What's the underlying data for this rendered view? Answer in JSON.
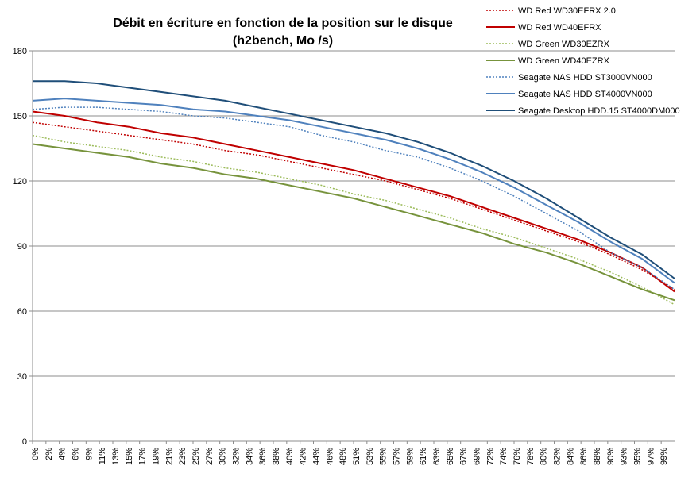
{
  "chart_data": {
    "type": "line",
    "title_lines": [
      "Débit en écriture en fonction de la position sur le disque",
      "(h2bench, Mo /s)"
    ],
    "xlabel": "",
    "ylabel": "",
    "ylim": [
      0,
      180
    ],
    "yticks": [
      0,
      30,
      60,
      90,
      120,
      150,
      180
    ],
    "grid": true,
    "legend_position": "top-right",
    "x_ticks": [
      "0%",
      "2%",
      "4%",
      "6%",
      "9%",
      "11%",
      "13%",
      "15%",
      "17%",
      "19%",
      "21%",
      "23%",
      "25%",
      "27%",
      "30%",
      "32%",
      "34%",
      "36%",
      "38%",
      "40%",
      "42%",
      "44%",
      "46%",
      "48%",
      "51%",
      "53%",
      "55%",
      "57%",
      "59%",
      "61%",
      "63%",
      "65%",
      "67%",
      "69%",
      "72%",
      "74%",
      "76%",
      "78%",
      "80%",
      "82%",
      "84%",
      "86%",
      "88%",
      "90%",
      "93%",
      "95%",
      "97%",
      "99%"
    ],
    "x": [
      0,
      5,
      10,
      15,
      20,
      25,
      30,
      35,
      40,
      45,
      50,
      55,
      60,
      65,
      70,
      75,
      80,
      85,
      90,
      95,
      100
    ],
    "series": [
      {
        "name": "WD Red WD30EFRX 2.0",
        "color": "#c00000",
        "dash": "dotted",
        "values": [
          147,
          145,
          143,
          141,
          139,
          137,
          134,
          132,
          129,
          126,
          123,
          120,
          116,
          112,
          107,
          102,
          97,
          92,
          86,
          79,
          70
        ]
      },
      {
        "name": "WD Red WD40EFRX",
        "color": "#c00000",
        "dash": "solid",
        "values": [
          152,
          150,
          147,
          145,
          142,
          140,
          137,
          134,
          131,
          128,
          125,
          121,
          117,
          113,
          108,
          103,
          98,
          93,
          87,
          80,
          69
        ]
      },
      {
        "name": "WD Green WD30EZRX",
        "color": "#9bbb59",
        "dash": "dotted",
        "values": [
          141,
          138,
          136,
          134,
          131,
          129,
          126,
          124,
          121,
          118,
          114,
          111,
          107,
          103,
          98,
          94,
          89,
          84,
          78,
          71,
          63
        ]
      },
      {
        "name": "WD Green WD40EZRX",
        "color": "#77933c",
        "dash": "solid",
        "values": [
          137,
          135,
          133,
          131,
          128,
          126,
          123,
          121,
          118,
          115,
          112,
          108,
          104,
          100,
          96,
          91,
          87,
          82,
          76,
          70,
          65
        ]
      },
      {
        "name": "Seagate NAS HDD ST3000VN000",
        "color": "#4f81bd",
        "dash": "dotted",
        "values": [
          153,
          154,
          154,
          153,
          152,
          150,
          149,
          147,
          145,
          141,
          138,
          134,
          131,
          126,
          120,
          113,
          105,
          97,
          87,
          80,
          70
        ]
      },
      {
        "name": "Seagate NAS HDD ST4000VN000",
        "color": "#4f81bd",
        "dash": "solid",
        "values": [
          157,
          158,
          157,
          156,
          155,
          153,
          152,
          150,
          148,
          145,
          142,
          139,
          135,
          130,
          124,
          117,
          109,
          101,
          92,
          84,
          73
        ]
      },
      {
        "name": "Seagate Desktop HDD.15 ST4000DM000",
        "color": "#1f4e79",
        "dash": "solid",
        "values": [
          166,
          166,
          165,
          163,
          161,
          159,
          157,
          154,
          151,
          148,
          145,
          142,
          138,
          133,
          127,
          120,
          112,
          103,
          94,
          86,
          75
        ]
      }
    ]
  }
}
